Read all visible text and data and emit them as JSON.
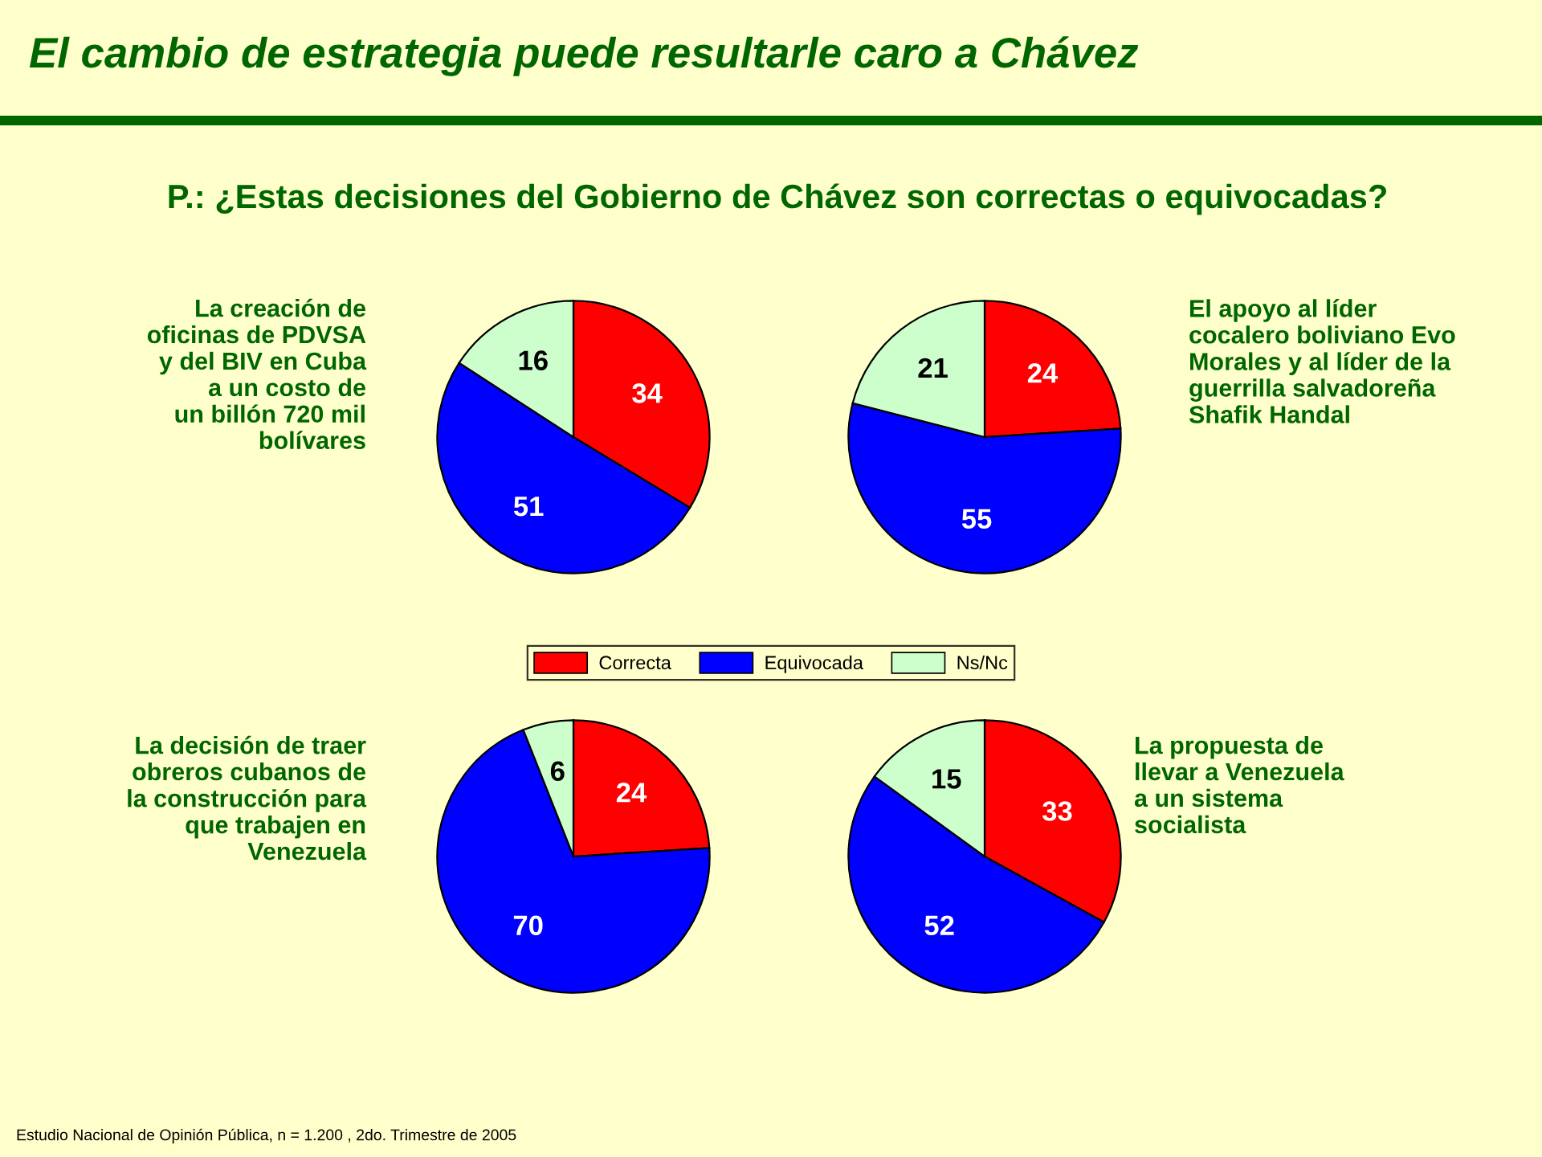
{
  "chart_data": [
    {
      "type": "pie",
      "title": "El cambio de estrategia puede resultarle caro a Chávez",
      "subtitle": "P.: ¿Estas decisiones del Gobierno de Chávez son correctas o equivocadas?",
      "categories": [
        "Correcta",
        "Equivocada",
        "Ns/Nc"
      ],
      "values": [
        34,
        51,
        16
      ],
      "colors": [
        "#ff0000",
        "#0000ff",
        "#ccffcc"
      ],
      "data_labels": true,
      "legend": "bottom",
      "annotations": [
        "La creación de\noficinas de PDVSA\ny del BIV en Cuba\na un costo de\nun billón 720 mil\nbolívares"
      ]
    },
    {
      "type": "pie",
      "values": [
        24,
        55,
        21
      ],
      "colors": [
        "#ff0000",
        "#0000ff",
        "#ccffcc"
      ],
      "data_labels": true,
      "annotations": [
        "El apoyo al líder\ncocalero boliviano Evo\nMorales y al líder de la\nguerrilla salvadoreña\nShafik Handal"
      ]
    },
    {
      "type": "pie",
      "values": [
        24,
        70,
        6
      ],
      "colors": [
        "#ff0000",
        "#0000ff",
        "#ccffcc"
      ],
      "data_labels": true,
      "annotations": [
        "La decisión de traer\nobreros cubanos de\nla construcción para\nque trabajen en\nVenezuela"
      ]
    },
    {
      "type": "pie",
      "values": [
        33,
        52,
        15
      ],
      "colors": [
        "#ff0000",
        "#0000ff",
        "#ccffcc"
      ],
      "data_labels": true,
      "annotations": [
        "La propuesta de\nllevar a Venezuela\na un sistema\nsocialista",
        "Estudio Nacional de Opinión Pública, n = 1.200 , 2do. Trimestre de 2005"
      ]
    }
  ]
}
